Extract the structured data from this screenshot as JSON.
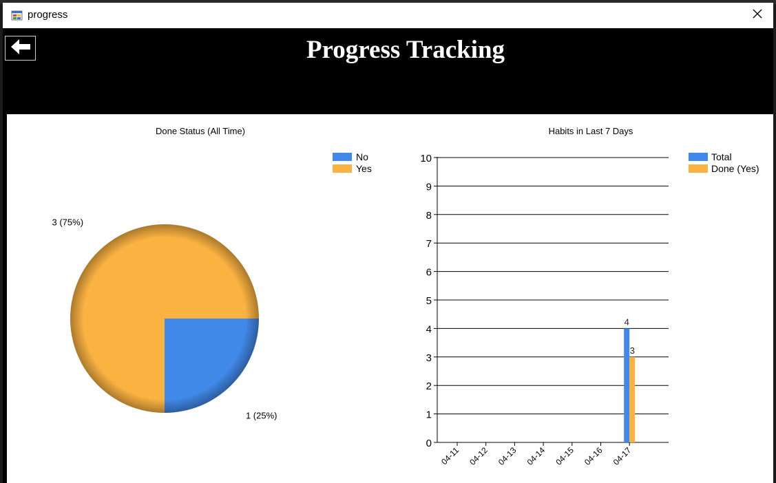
{
  "window": {
    "title": "progress",
    "icon": "app-form-icon",
    "close_icon": "close-icon"
  },
  "header": {
    "title": "Progress Tracking",
    "back_icon": "arrow-left-icon"
  },
  "colors": {
    "no": "#4189e8",
    "yes": "#fab241",
    "header_bg": "#000000"
  },
  "chart_data": [
    {
      "type": "pie",
      "title": "Done Status (All Time)",
      "legend": [
        "No",
        "Yes"
      ],
      "legend_position": "top-right",
      "slices": [
        {
          "name": "No",
          "value": 1,
          "label": "1 (25%)",
          "color": "#4189e8"
        },
        {
          "name": "Yes",
          "value": 3,
          "label": "3 (75%)",
          "color": "#fab241"
        }
      ]
    },
    {
      "type": "bar",
      "title": "Habits in Last 7 Days",
      "legend_position": "top-right",
      "categories": [
        "04-11",
        "04-12",
        "04-13",
        "04-14",
        "04-15",
        "04-16",
        "04-17"
      ],
      "series": [
        {
          "name": "Total",
          "values": [
            0,
            0,
            0,
            0,
            0,
            0,
            4
          ],
          "color": "#4189e8"
        },
        {
          "name": "Done (Yes)",
          "values": [
            0,
            0,
            0,
            0,
            0,
            0,
            3
          ],
          "color": "#fab241"
        }
      ],
      "ylim": [
        0,
        10
      ],
      "yticks": [
        "0",
        "1",
        "2",
        "3",
        "4",
        "5",
        "6",
        "7",
        "8",
        "9",
        "10"
      ],
      "grid": true
    }
  ]
}
